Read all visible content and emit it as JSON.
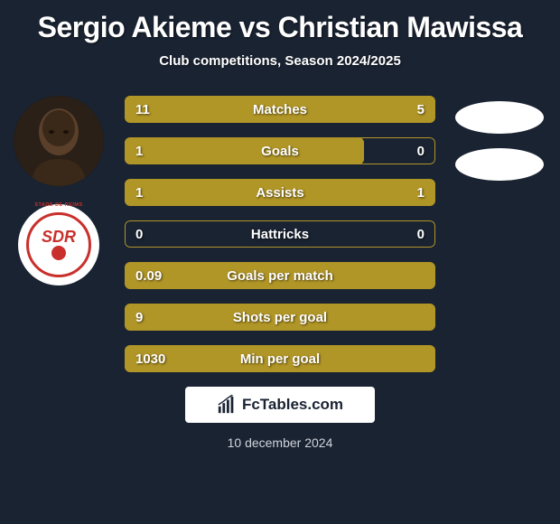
{
  "title": "Sergio Akieme vs Christian Mawissa",
  "subtitle": "Club competitions, Season 2024/2025",
  "date": "10 december 2024",
  "footer_brand": "FcTables.com",
  "colors": {
    "background": "#1a2332",
    "bar_fill": "#b09527",
    "bar_border": "#b09527",
    "text": "#ffffff",
    "badge_red": "#c9302c",
    "ellipse": "#ffffff"
  },
  "player_left": {
    "name": "Sergio Akieme",
    "club_badge": {
      "top_text": "STADE DE REIMS",
      "letters": "SDR"
    }
  },
  "player_right": {
    "name": "Christian Mawissa"
  },
  "stats": [
    {
      "label": "Matches",
      "left_val": "11",
      "right_val": "5",
      "left_pct": 68.75,
      "right_pct": 31.25,
      "mode": "split"
    },
    {
      "label": "Goals",
      "left_val": "1",
      "right_val": "0",
      "left_pct": 77,
      "right_pct": 0,
      "mode": "left-only"
    },
    {
      "label": "Assists",
      "left_val": "1",
      "right_val": "1",
      "left_pct": 100,
      "right_pct": 0,
      "mode": "full"
    },
    {
      "label": "Hattricks",
      "left_val": "0",
      "right_val": "0",
      "left_pct": 0,
      "right_pct": 0,
      "mode": "empty"
    },
    {
      "label": "Goals per match",
      "left_val": "0.09",
      "right_val": "",
      "left_pct": 100,
      "right_pct": 0,
      "mode": "full"
    },
    {
      "label": "Shots per goal",
      "left_val": "9",
      "right_val": "",
      "left_pct": 100,
      "right_pct": 0,
      "mode": "full"
    },
    {
      "label": "Min per goal",
      "left_val": "1030",
      "right_val": "",
      "left_pct": 100,
      "right_pct": 0,
      "mode": "full"
    }
  ],
  "typography": {
    "title_fontsize": 32,
    "subtitle_fontsize": 15,
    "bar_label_fontsize": 15,
    "date_fontsize": 14
  }
}
